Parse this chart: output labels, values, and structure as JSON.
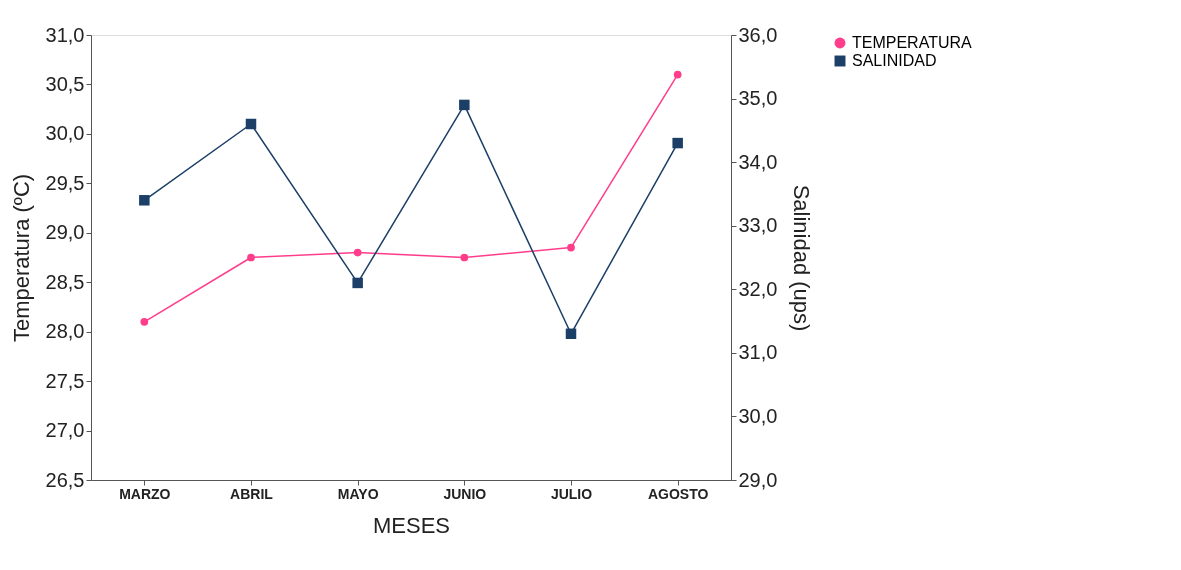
{
  "chart_data": {
    "type": "line",
    "categories": [
      "MARZO",
      "ABRIL",
      "MAYO",
      "JUNIO",
      "JULIO",
      "AGOSTO"
    ],
    "xlabel": "MESES",
    "ylabel": "Temperatura (ºC)",
    "y2label": "Salinidad (ups)",
    "series": [
      {
        "name": "TEMPERATURA",
        "color": "#ff3d8b",
        "marker": "circle",
        "values": [
          28.1,
          28.75,
          28.8,
          28.75,
          28.85,
          30.6
        ]
      },
      {
        "name": "SALINIDAD",
        "color": "#1b3f66",
        "marker": "square",
        "axis": "y2",
        "values": [
          33.4,
          34.6,
          32.1,
          34.9,
          31.3,
          34.3
        ]
      }
    ],
    "ylim": [
      26.5,
      31.0
    ],
    "yticks": [
      {
        "value": 26.5,
        "label": "26,5"
      },
      {
        "value": 27.0,
        "label": "27,0"
      },
      {
        "value": 27.5,
        "label": "27,5"
      },
      {
        "value": 28.0,
        "label": "28,0"
      },
      {
        "value": 28.5,
        "label": "28,5"
      },
      {
        "value": 29.0,
        "label": "29,0"
      },
      {
        "value": 29.5,
        "label": "29,5"
      },
      {
        "value": 30.0,
        "label": "30,0"
      },
      {
        "value": 30.5,
        "label": "30,5"
      },
      {
        "value": 31.0,
        "label": "31,0"
      }
    ],
    "y2lim": [
      29.0,
      36.0
    ],
    "y2ticks": [
      {
        "value": 29.0,
        "label": "29,0"
      },
      {
        "value": 30.0,
        "label": "30,0"
      },
      {
        "value": 31.0,
        "label": "31,0"
      },
      {
        "value": 32.0,
        "label": "32,0"
      },
      {
        "value": 33.0,
        "label": "33,0"
      },
      {
        "value": 34.0,
        "label": "34,0"
      },
      {
        "value": 35.0,
        "label": "35,0"
      },
      {
        "value": 36.0,
        "label": "36,0"
      }
    ],
    "grid": false,
    "legend": "top right",
    "line_style": "solid"
  }
}
